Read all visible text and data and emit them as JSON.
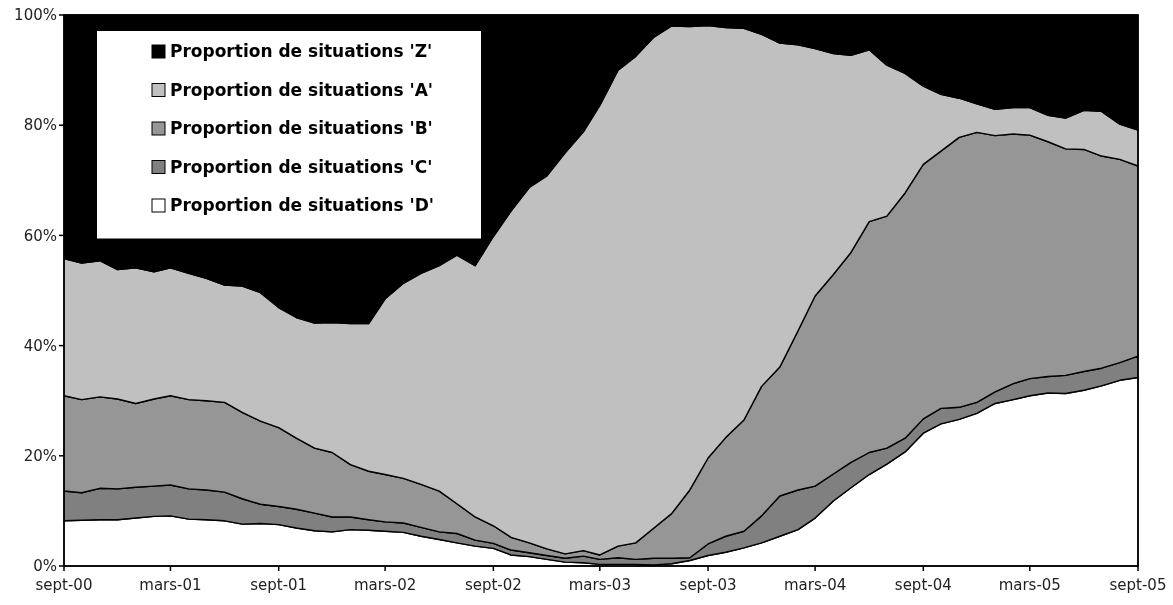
{
  "chart_data": {
    "type": "area",
    "stacked": true,
    "legend": "top left",
    "grid": false,
    "x": [
      "2000-09",
      "2000-10",
      "2000-11",
      "2000-12",
      "2001-01",
      "2001-02",
      "2001-03",
      "2001-04",
      "2001-05",
      "2001-06",
      "2001-07",
      "2001-08",
      "2001-09",
      "2001-10",
      "2001-11",
      "2001-12",
      "2002-01",
      "2002-02",
      "2002-03",
      "2002-04",
      "2002-05",
      "2002-06",
      "2002-07",
      "2002-08",
      "2002-09",
      "2002-10",
      "2002-11",
      "2002-12",
      "2003-01",
      "2003-02",
      "2003-03",
      "2003-04",
      "2003-05",
      "2003-06",
      "2003-07",
      "2003-08",
      "2003-09",
      "2003-10",
      "2003-11",
      "2003-12",
      "2004-01",
      "2004-02",
      "2004-03",
      "2004-04",
      "2004-05",
      "2004-06",
      "2004-07",
      "2004-08",
      "2004-09",
      "2004-10",
      "2004-11",
      "2004-12",
      "2005-01",
      "2005-02",
      "2005-03",
      "2005-04",
      "2005-05",
      "2005-06",
      "2005-07",
      "2005-08",
      "2005-09"
    ],
    "xlim": [
      "2000-09",
      "2005-09"
    ],
    "xticks": [
      {
        "value": "2000-09",
        "label": "sept-00"
      },
      {
        "value": "2001-03",
        "label": "mars-01"
      },
      {
        "value": "2001-09",
        "label": "sept-01"
      },
      {
        "value": "2002-03",
        "label": "mars-02"
      },
      {
        "value": "2002-09",
        "label": "sept-02"
      },
      {
        "value": "2003-03",
        "label": "mars-03"
      },
      {
        "value": "2003-09",
        "label": "sept-03"
      },
      {
        "value": "2004-03",
        "label": "mars-04"
      },
      {
        "value": "2004-09",
        "label": "sept-04"
      },
      {
        "value": "2005-03",
        "label": "mars-05"
      },
      {
        "value": "2005-09",
        "label": "sept-05"
      }
    ],
    "ylim": [
      0,
      100
    ],
    "yticks": [
      {
        "value": 0,
        "label": "0%"
      },
      {
        "value": 20,
        "label": "20%"
      },
      {
        "value": 40,
        "label": "40%"
      },
      {
        "value": 60,
        "label": "60%"
      },
      {
        "value": 80,
        "label": "80%"
      },
      {
        "value": 100,
        "label": "100%"
      }
    ],
    "series": [
      {
        "name": "Proportion de situations 'D'",
        "color": "#ffffff",
        "values": [
          8.2,
          8.3,
          8.4,
          8.4,
          8.7,
          9.0,
          9.1,
          8.5,
          8.4,
          8.2,
          7.6,
          7.7,
          7.5,
          6.9,
          6.4,
          6.2,
          6.6,
          6.5,
          6.3,
          6.1,
          5.4,
          4.8,
          4.2,
          3.6,
          3.2,
          2.0,
          1.7,
          1.2,
          0.7,
          0.6,
          0.3,
          0.3,
          0.3,
          0.2,
          0.4,
          1.0,
          1.9,
          2.5,
          3.3,
          4.2,
          5.4,
          6.6,
          8.7,
          11.8,
          14.2,
          16.6,
          18.5,
          20.7,
          24.1,
          25.8,
          26.6,
          27.7,
          29.5,
          30.2,
          30.9,
          31.4,
          31.3,
          31.9,
          32.7,
          33.7,
          34.2
        ]
      },
      {
        "name": "Proportion de situations 'C'",
        "color": "#808080",
        "values": [
          5.4,
          5.0,
          5.7,
          5.6,
          5.6,
          5.5,
          5.6,
          5.5,
          5.4,
          5.2,
          4.6,
          3.5,
          3.3,
          3.4,
          3.2,
          2.7,
          2.3,
          1.9,
          1.7,
          1.7,
          1.6,
          1.4,
          1.7,
          1.1,
          0.9,
          0.9,
          0.7,
          0.7,
          0.7,
          1.2,
          0.9,
          1.2,
          0.9,
          1.2,
          1.0,
          0.5,
          2.1,
          2.9,
          3.0,
          4.9,
          7.3,
          7.2,
          5.8,
          4.9,
          4.6,
          4.0,
          2.9,
          2.5,
          2.6,
          2.8,
          2.2,
          2.0,
          2.1,
          2.9,
          3.1,
          3.0,
          3.3,
          3.4,
          3.2,
          3.2,
          3.9
        ]
      },
      {
        "name": "Proportion de situations 'B'",
        "color": "#969696",
        "values": [
          17.3,
          16.9,
          16.6,
          16.3,
          15.2,
          15.8,
          16.2,
          16.2,
          16.2,
          16.3,
          15.7,
          15.1,
          14.3,
          12.9,
          11.8,
          11.7,
          9.5,
          8.8,
          8.6,
          8.1,
          7.8,
          7.4,
          5.4,
          4.2,
          3.2,
          2.3,
          1.8,
          1.2,
          0.8,
          1.0,
          0.8,
          2.1,
          3.0,
          5.5,
          8.1,
          12.3,
          15.6,
          17.9,
          20.2,
          23.5,
          23.4,
          28.9,
          34.5,
          36.2,
          38.1,
          41.9,
          42.1,
          44.5,
          46.2,
          46.7,
          49.0,
          49.0,
          46.5,
          45.3,
          44.2,
          42.6,
          41.1,
          40.3,
          38.5,
          36.9,
          34.5
        ]
      },
      {
        "name": "Proportion de situations 'A'",
        "color": "#c0c0c0",
        "values": [
          24.9,
          24.8,
          24.7,
          23.5,
          24.6,
          23.1,
          23.2,
          22.9,
          22.2,
          21.3,
          22.9,
          23.3,
          21.8,
          21.9,
          22.7,
          23.6,
          25.6,
          26.8,
          31.9,
          35.4,
          38.3,
          40.9,
          45.1,
          45.6,
          52.5,
          59.2,
          64.5,
          67.7,
          72.8,
          76.0,
          81.6,
          86.4,
          88.3,
          89.1,
          88.5,
          84.1,
          78.5,
          74.4,
          71.1,
          63.9,
          58.8,
          51.9,
          44.9,
          40.1,
          35.8,
          31.2,
          27.4,
          21.7,
          14.2,
          10.3,
          7.1,
          5.2,
          4.8,
          4.8,
          5.0,
          4.8,
          5.6,
          7.1,
          8.1,
          6.4,
          6.5
        ]
      },
      {
        "name": "Proportion de situations 'Z'",
        "color": "#000000",
        "values": [
          44.2,
          45.0,
          44.6,
          46.2,
          45.9,
          46.6,
          45.9,
          46.9,
          47.8,
          49.0,
          49.2,
          50.4,
          53.1,
          54.9,
          55.9,
          55.8,
          56.0,
          56.0,
          51.5,
          48.7,
          46.9,
          45.5,
          43.6,
          45.5,
          40.2,
          35.6,
          31.3,
          29.2,
          25.0,
          21.2,
          16.4,
          10.0,
          7.5,
          4.0,
          2.0,
          2.1,
          1.9,
          2.3,
          2.4,
          3.5,
          5.1,
          5.4,
          6.1,
          7.0,
          7.3,
          6.3,
          9.1,
          10.6,
          12.9,
          14.4,
          15.1,
          16.1,
          17.1,
          16.8,
          16.8,
          18.2,
          18.7,
          17.3,
          17.5,
          19.8,
          20.9
        ]
      }
    ]
  }
}
